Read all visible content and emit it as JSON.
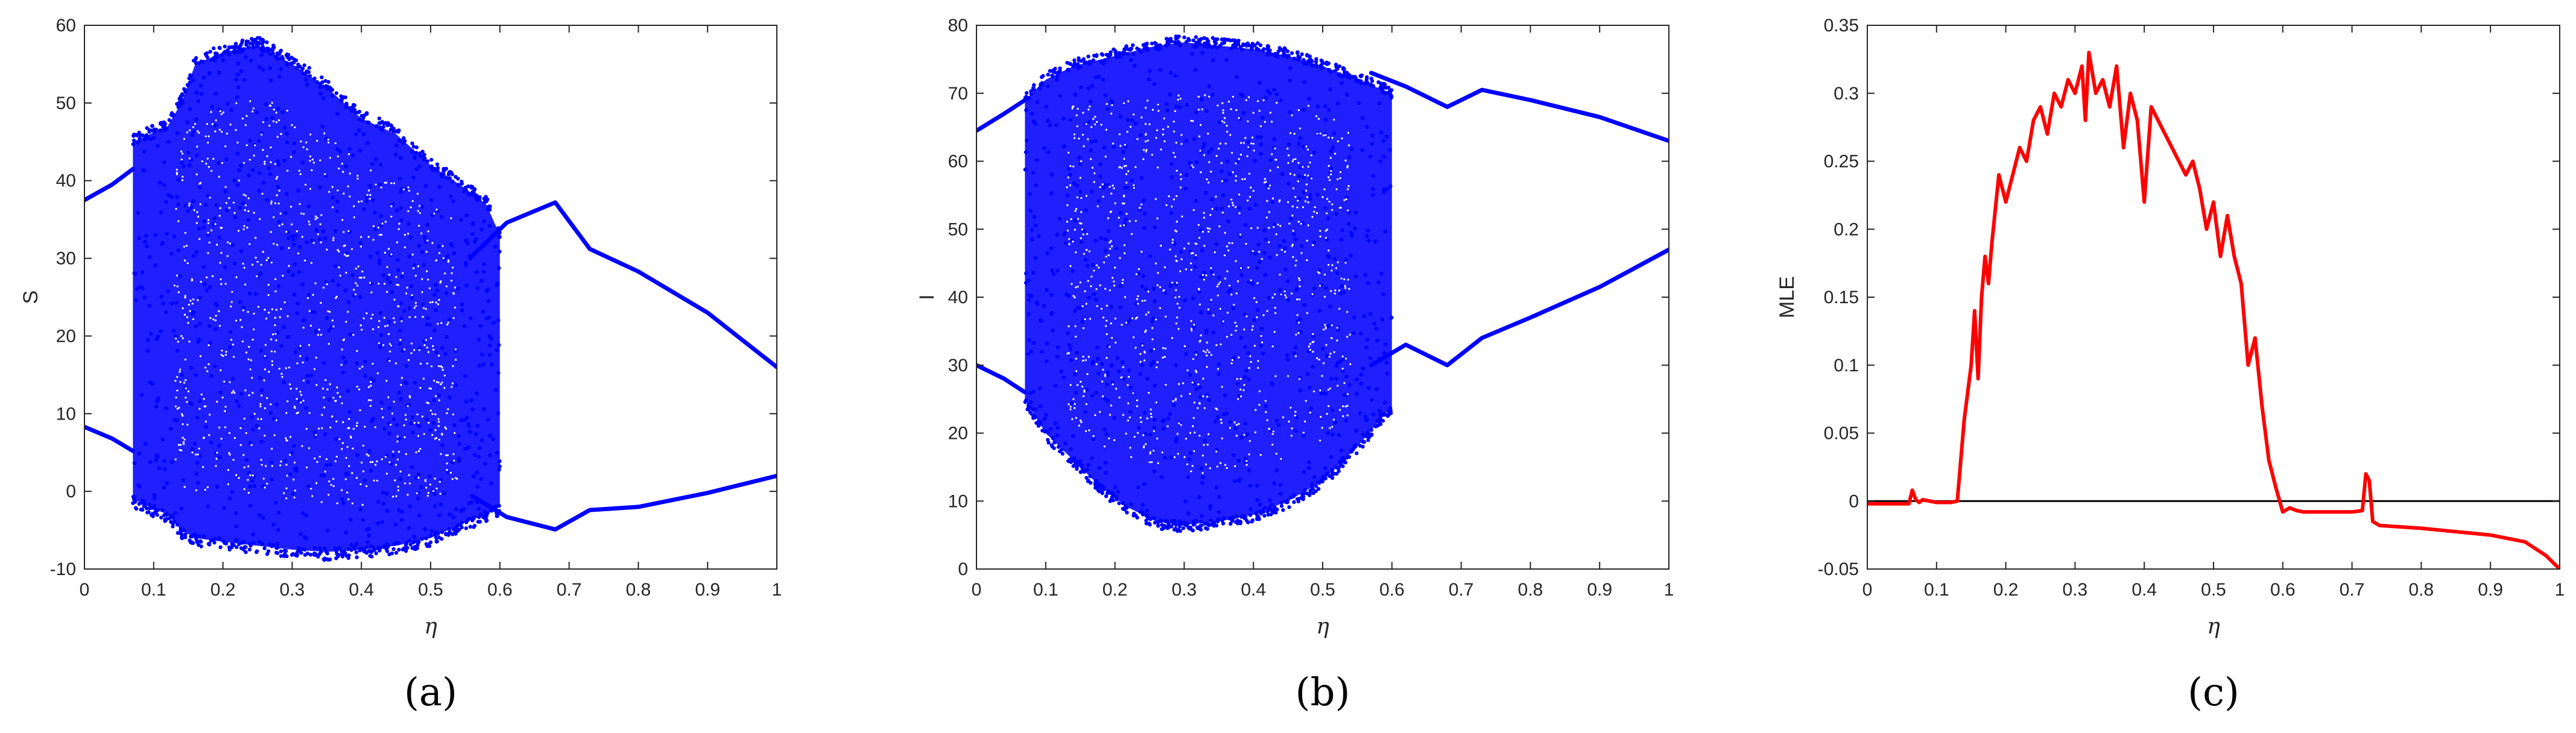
{
  "chart_data": [
    {
      "type": "scatter",
      "panel": "a",
      "xlabel": "η",
      "ylabel": "S",
      "xlim": [
        0,
        1
      ],
      "ylim": [
        -10,
        60
      ],
      "xticks": [
        "0",
        "0.1",
        "0.2",
        "0.3",
        "0.4",
        "0.5",
        "0.6",
        "0.7",
        "0.8",
        "0.9",
        "1"
      ],
      "yticks": [
        "-10",
        "0",
        "10",
        "20",
        "30",
        "40",
        "50",
        "60"
      ],
      "color": "#0000ff",
      "curves": [
        {
          "x": [
            0,
            0.04,
            0.07
          ],
          "y": [
            37.5,
            39.5,
            41.5
          ]
        },
        {
          "x": [
            0,
            0.04,
            0.07
          ],
          "y": [
            8.3,
            6.8,
            5.2
          ]
        },
        {
          "x": [
            0.56,
            0.61,
            0.68,
            0.73,
            0.8,
            0.9,
            1.0
          ],
          "y": [
            30.3,
            34.6,
            37.2,
            31.2,
            28.3,
            23,
            16
          ]
        },
        {
          "x": [
            0.56,
            0.61,
            0.68,
            0.73,
            0.8,
            0.9,
            1.0
          ],
          "y": [
            -0.6,
            -3.3,
            -4.9,
            -2.4,
            -2,
            -0.2,
            2
          ]
        }
      ],
      "cloud_envelope": {
        "x": [
          0.07,
          0.12,
          0.14,
          0.16,
          0.2,
          0.25,
          0.3,
          0.35,
          0.4,
          0.45,
          0.5,
          0.55,
          0.58,
          0.6
        ],
        "upper": [
          45,
          47,
          50,
          55,
          56.5,
          57.5,
          55,
          52,
          48,
          46,
          42,
          39,
          37,
          33
        ],
        "lower": [
          -1,
          -3,
          -5,
          -6,
          -6.5,
          -7,
          -7.5,
          -7.8,
          -7.5,
          -7,
          -6,
          -4,
          -3,
          -2
        ]
      }
    },
    {
      "type": "scatter",
      "panel": "b",
      "xlabel": "η",
      "ylabel": "I",
      "xlim": [
        0,
        1
      ],
      "ylim": [
        0,
        80
      ],
      "xticks": [
        "0",
        "0.1",
        "0.2",
        "0.3",
        "0.4",
        "0.5",
        "0.6",
        "0.7",
        "0.8",
        "0.9",
        "1"
      ],
      "yticks": [
        "0",
        "10",
        "20",
        "30",
        "40",
        "50",
        "60",
        "70",
        "80"
      ],
      "color": "#0000ff",
      "curves": [
        {
          "x": [
            0,
            0.04,
            0.07
          ],
          "y": [
            64.5,
            67,
            69
          ]
        },
        {
          "x": [
            0,
            0.04,
            0.07
          ],
          "y": [
            30,
            28,
            26
          ]
        },
        {
          "x": [
            0.57,
            0.62,
            0.68,
            0.73,
            0.8,
            0.9,
            1.0
          ],
          "y": [
            73,
            71,
            68,
            70.5,
            69,
            66.5,
            63
          ]
        },
        {
          "x": [
            0.57,
            0.62,
            0.68,
            0.73,
            0.8,
            0.9,
            1.0
          ],
          "y": [
            30,
            33,
            30,
            34,
            37,
            41.5,
            47
          ]
        }
      ],
      "cloud_envelope": {
        "x": [
          0.07,
          0.1,
          0.14,
          0.18,
          0.22,
          0.26,
          0.3,
          0.35,
          0.4,
          0.45,
          0.5,
          0.55,
          0.6
        ],
        "upper": [
          69,
          72,
          74,
          75,
          76,
          77,
          77.5,
          77,
          76.5,
          75.5,
          74,
          72,
          70
        ],
        "lower": [
          25,
          20,
          16,
          12,
          9,
          7,
          6.5,
          7,
          8,
          10,
          13,
          18,
          24
        ]
      }
    },
    {
      "type": "line",
      "panel": "c",
      "xlabel": "η",
      "ylabel": "MLE",
      "xlim": [
        0,
        1
      ],
      "ylim": [
        -0.05,
        0.35
      ],
      "xticks": [
        "0",
        "0.1",
        "0.2",
        "0.3",
        "0.4",
        "0.5",
        "0.6",
        "0.7",
        "0.8",
        "0.9",
        "1"
      ],
      "yticks": [
        "-0.05",
        "0",
        "0.05",
        "0.1",
        "0.15",
        "0.2",
        "0.25",
        "0.3",
        "0.35"
      ],
      "reference_line_y": 0,
      "series": [
        {
          "color": "#ff0000",
          "x": [
            0,
            0.06,
            0.065,
            0.07,
            0.075,
            0.08,
            0.1,
            0.12,
            0.13,
            0.14,
            0.15,
            0.155,
            0.16,
            0.165,
            0.17,
            0.175,
            0.18,
            0.19,
            0.2,
            0.21,
            0.22,
            0.23,
            0.24,
            0.25,
            0.26,
            0.27,
            0.28,
            0.29,
            0.3,
            0.31,
            0.315,
            0.32,
            0.33,
            0.34,
            0.35,
            0.36,
            0.37,
            0.38,
            0.39,
            0.4,
            0.41,
            0.42,
            0.43,
            0.44,
            0.45,
            0.46,
            0.47,
            0.48,
            0.49,
            0.5,
            0.51,
            0.52,
            0.53,
            0.54,
            0.55,
            0.56,
            0.57,
            0.58,
            0.59,
            0.6,
            0.61,
            0.62,
            0.63,
            0.7,
            0.715,
            0.72,
            0.725,
            0.73,
            0.74,
            0.8,
            0.9,
            0.95,
            0.98,
            1.0
          ],
          "y": [
            -0.002,
            -0.002,
            0.008,
            0.001,
            -0.001,
            0.001,
            -0.001,
            -0.001,
            0.0,
            0.06,
            0.1,
            0.14,
            0.09,
            0.15,
            0.18,
            0.16,
            0.19,
            0.24,
            0.22,
            0.24,
            0.26,
            0.25,
            0.28,
            0.29,
            0.27,
            0.3,
            0.29,
            0.31,
            0.3,
            0.32,
            0.28,
            0.33,
            0.3,
            0.31,
            0.29,
            0.32,
            0.26,
            0.3,
            0.28,
            0.22,
            0.29,
            0.28,
            0.27,
            0.26,
            0.25,
            0.24,
            0.25,
            0.23,
            0.2,
            0.22,
            0.18,
            0.21,
            0.18,
            0.16,
            0.1,
            0.12,
            0.07,
            0.03,
            0.01,
            -0.008,
            -0.005,
            -0.007,
            -0.008,
            -0.008,
            -0.007,
            0.02,
            0.015,
            -0.015,
            -0.018,
            -0.02,
            -0.025,
            -0.03,
            -0.04,
            -0.05
          ]
        }
      ]
    }
  ],
  "panel_labels": [
    "(a)",
    "(b)",
    "(c)"
  ]
}
